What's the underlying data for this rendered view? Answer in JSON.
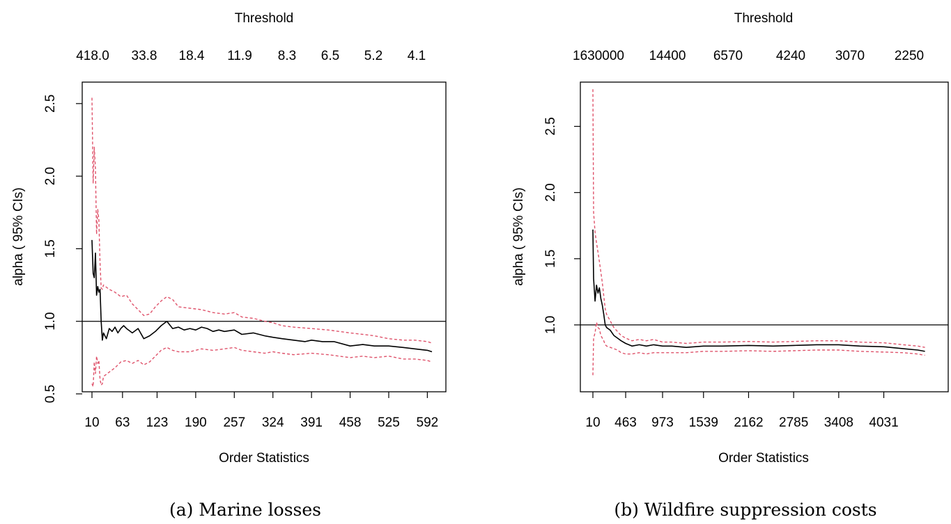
{
  "chart_data": [
    {
      "type": "line",
      "caption": "(a) Marine losses",
      "xlabel": "Order Statistics",
      "ylabel": "alpha ( 95% CIs)",
      "top_axis_label": "Threshold",
      "xlim": [
        10,
        600
      ],
      "ylim": [
        0.5,
        2.6
      ],
      "x_ticks": [
        10,
        63,
        123,
        190,
        257,
        324,
        391,
        458,
        525,
        592
      ],
      "y_ticks": [
        "0.5",
        "1.0",
        "1.5",
        "2.0",
        "2.5"
      ],
      "y_tick_values": [
        0.5,
        1.0,
        1.5,
        2.0,
        2.5
      ],
      "top_ticks": [
        "418.0",
        "33.8",
        "18.4",
        "11.9",
        "8.3",
        "6.5",
        "5.2",
        "4.1"
      ],
      "reference_line": 1.0,
      "colors": {
        "estimate": "#000000",
        "ci": "#DF536B",
        "reference": "#000000"
      },
      "series": [
        {
          "role": "estimate",
          "x": [
            10,
            12,
            14,
            16,
            18,
            20,
            22,
            24,
            26,
            28,
            30,
            35,
            40,
            45,
            50,
            55,
            60,
            65,
            70,
            80,
            90,
            100,
            110,
            120,
            130,
            140,
            150,
            160,
            170,
            180,
            190,
            200,
            210,
            220,
            230,
            240,
            257,
            270,
            290,
            310,
            324,
            340,
            360,
            380,
            391,
            410,
            430,
            458,
            480,
            500,
            525,
            550,
            570,
            592,
            600
          ],
          "y": [
            1.56,
            1.33,
            1.3,
            1.47,
            1.18,
            1.24,
            1.2,
            1.22,
            1.0,
            0.87,
            0.92,
            0.88,
            0.95,
            0.93,
            0.96,
            0.92,
            0.95,
            0.97,
            0.95,
            0.92,
            0.95,
            0.88,
            0.9,
            0.93,
            0.97,
            1.0,
            0.95,
            0.96,
            0.94,
            0.95,
            0.94,
            0.96,
            0.95,
            0.93,
            0.94,
            0.93,
            0.94,
            0.91,
            0.92,
            0.9,
            0.89,
            0.88,
            0.87,
            0.86,
            0.87,
            0.86,
            0.86,
            0.83,
            0.84,
            0.83,
            0.83,
            0.82,
            0.81,
            0.8,
            0.79
          ]
        },
        {
          "role": "ci_upper",
          "x": [
            10,
            12,
            14,
            16,
            18,
            20,
            22,
            24,
            26,
            28,
            30,
            40,
            50,
            60,
            70,
            80,
            90,
            100,
            110,
            120,
            130,
            140,
            150,
            160,
            180,
            200,
            220,
            240,
            257,
            270,
            290,
            310,
            324,
            340,
            360,
            391,
            420,
            458,
            480,
            500,
            525,
            550,
            570,
            592,
            600
          ],
          "y": [
            2.54,
            1.95,
            2.2,
            2.05,
            1.6,
            1.77,
            1.7,
            1.4,
            1.23,
            1.22,
            1.25,
            1.22,
            1.2,
            1.17,
            1.18,
            1.12,
            1.08,
            1.04,
            1.05,
            1.1,
            1.14,
            1.17,
            1.15,
            1.1,
            1.09,
            1.08,
            1.06,
            1.05,
            1.06,
            1.03,
            1.02,
            1.0,
            0.99,
            0.97,
            0.96,
            0.95,
            0.94,
            0.92,
            0.91,
            0.9,
            0.88,
            0.87,
            0.87,
            0.86,
            0.85
          ]
        },
        {
          "role": "ci_lower",
          "x": [
            10,
            12,
            14,
            16,
            18,
            20,
            22,
            24,
            26,
            28,
            30,
            40,
            50,
            60,
            70,
            80,
            90,
            100,
            110,
            120,
            130,
            140,
            150,
            160,
            180,
            200,
            220,
            240,
            257,
            270,
            290,
            310,
            324,
            340,
            360,
            391,
            420,
            458,
            480,
            500,
            525,
            550,
            570,
            592,
            600
          ],
          "y": [
            0.57,
            0.55,
            0.72,
            0.64,
            0.76,
            0.71,
            0.73,
            0.6,
            0.56,
            0.57,
            0.62,
            0.65,
            0.68,
            0.72,
            0.73,
            0.71,
            0.73,
            0.7,
            0.72,
            0.76,
            0.8,
            0.82,
            0.8,
            0.79,
            0.79,
            0.81,
            0.8,
            0.81,
            0.82,
            0.8,
            0.79,
            0.78,
            0.79,
            0.78,
            0.77,
            0.78,
            0.77,
            0.75,
            0.76,
            0.75,
            0.76,
            0.74,
            0.74,
            0.73,
            0.72
          ]
        }
      ]
    },
    {
      "type": "line",
      "caption": "(b) Wildfire suppression costs",
      "xlabel": "Order Statistics",
      "ylabel": "alpha ( 95% CIs)",
      "top_axis_label": "Threshold",
      "xlim": [
        10,
        4700
      ],
      "ylim": [
        0.5,
        2.85
      ],
      "x_ticks": [
        10,
        463,
        973,
        1539,
        2162,
        2785,
        3408,
        4031
      ],
      "y_ticks": [
        "1.0",
        "1.5",
        "2.0",
        "2.5"
      ],
      "y_tick_values": [
        1.0,
        1.5,
        2.0,
        2.5
      ],
      "top_ticks": [
        "1630000",
        "14400",
        "6570",
        "4240",
        "3070",
        "2250"
      ],
      "reference_line": 1.0,
      "colors": {
        "estimate": "#000000",
        "ci": "#DF536B",
        "reference": "#000000"
      },
      "series": [
        {
          "role": "estimate",
          "x": [
            10,
            20,
            40,
            60,
            80,
            100,
            120,
            140,
            160,
            180,
            200,
            250,
            300,
            350,
            400,
            463,
            550,
            650,
            750,
            850,
            973,
            1100,
            1300,
            1539,
            1800,
            2162,
            2500,
            2785,
            3100,
            3408,
            3700,
            4031,
            4300,
            4500,
            4600
          ],
          "y": [
            1.72,
            1.35,
            1.18,
            1.3,
            1.24,
            1.28,
            1.2,
            1.15,
            1.08,
            1.0,
            0.98,
            0.96,
            0.92,
            0.9,
            0.88,
            0.86,
            0.84,
            0.85,
            0.84,
            0.85,
            0.84,
            0.84,
            0.83,
            0.84,
            0.84,
            0.845,
            0.84,
            0.845,
            0.85,
            0.85,
            0.84,
            0.835,
            0.82,
            0.81,
            0.8
          ]
        },
        {
          "role": "ci_upper",
          "x": [
            10,
            20,
            40,
            60,
            80,
            100,
            120,
            140,
            160,
            180,
            200,
            250,
            300,
            350,
            400,
            463,
            550,
            650,
            750,
            850,
            973,
            1100,
            1300,
            1539,
            1800,
            2162,
            2500,
            2785,
            3100,
            3408,
            3700,
            4031,
            4300,
            4500,
            4600
          ],
          "y": [
            2.78,
            1.85,
            1.7,
            1.62,
            1.55,
            1.48,
            1.4,
            1.32,
            1.22,
            1.12,
            1.08,
            1.03,
            0.98,
            0.95,
            0.92,
            0.9,
            0.88,
            0.89,
            0.88,
            0.89,
            0.87,
            0.87,
            0.86,
            0.87,
            0.87,
            0.875,
            0.87,
            0.875,
            0.88,
            0.88,
            0.87,
            0.865,
            0.85,
            0.84,
            0.83
          ]
        },
        {
          "role": "ci_lower",
          "x": [
            10,
            20,
            40,
            60,
            80,
            100,
            120,
            140,
            160,
            180,
            200,
            250,
            300,
            350,
            400,
            463,
            550,
            650,
            750,
            850,
            973,
            1100,
            1300,
            1539,
            1800,
            2162,
            2500,
            2785,
            3100,
            3408,
            3700,
            4031,
            4300,
            4500,
            4600
          ],
          "y": [
            0.62,
            0.9,
            0.94,
            1.02,
            0.98,
            0.97,
            0.92,
            0.9,
            0.88,
            0.85,
            0.84,
            0.83,
            0.82,
            0.81,
            0.79,
            0.78,
            0.78,
            0.79,
            0.78,
            0.79,
            0.79,
            0.79,
            0.79,
            0.8,
            0.8,
            0.805,
            0.8,
            0.805,
            0.81,
            0.81,
            0.8,
            0.795,
            0.79,
            0.78,
            0.77
          ]
        }
      ]
    }
  ]
}
